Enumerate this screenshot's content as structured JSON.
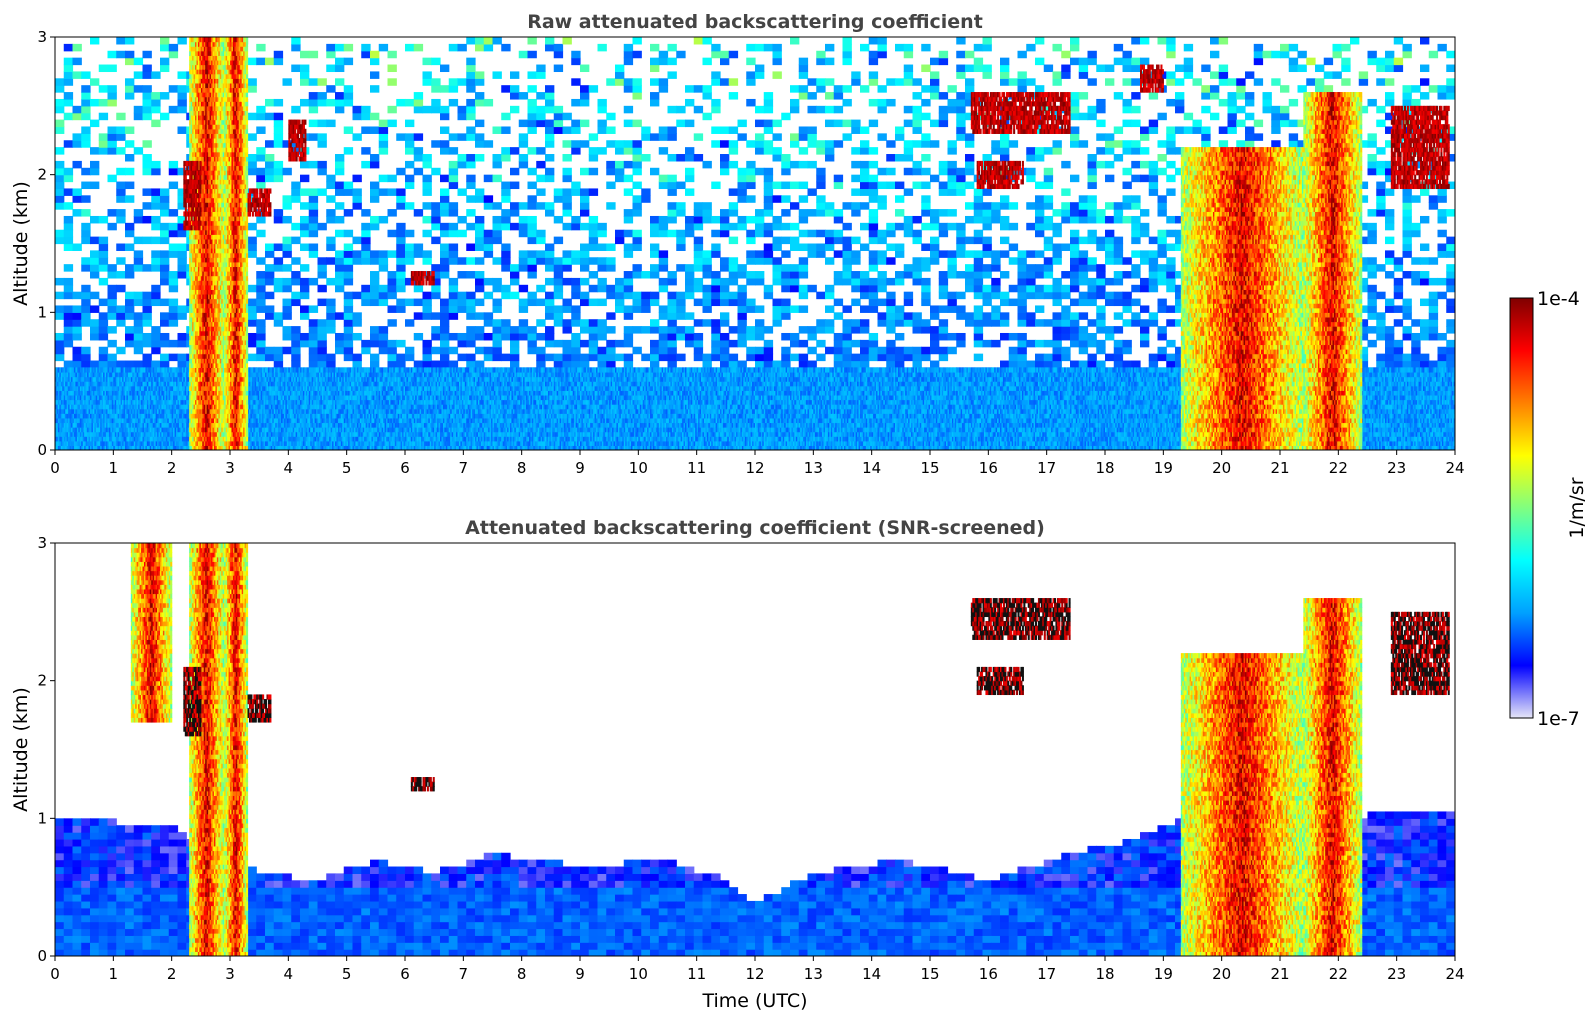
{
  "chart_data": [
    {
      "type": "heatmap",
      "title": "Raw attenuated backscattering coefficient",
      "xlabel": "",
      "ylabel": "Altitude (km)",
      "xlim": [
        0,
        24
      ],
      "ylim": [
        0,
        3
      ],
      "x_ticks": [
        "0",
        "1",
        "2",
        "3",
        "4",
        "5",
        "6",
        "7",
        "8",
        "9",
        "10",
        "11",
        "12",
        "13",
        "14",
        "15",
        "16",
        "17",
        "18",
        "19",
        "20",
        "21",
        "22",
        "23",
        "24"
      ],
      "y_ticks": [
        "0",
        "1",
        "2",
        "3"
      ],
      "screened": false,
      "features": [
        {
          "kind": "boundary_layer",
          "x": [
            0,
            24
          ],
          "y": [
            0,
            0.6
          ]
        },
        {
          "kind": "plume",
          "x": [
            2.3,
            2.9
          ],
          "y": [
            0,
            3.0
          ]
        },
        {
          "kind": "plume",
          "x": [
            2.9,
            3.3
          ],
          "y": [
            0,
            3.0
          ]
        },
        {
          "kind": "cloud",
          "x": [
            2.2,
            2.5
          ],
          "y": [
            1.6,
            2.1
          ]
        },
        {
          "kind": "cloud",
          "x": [
            3.3,
            3.7
          ],
          "y": [
            1.7,
            1.9
          ]
        },
        {
          "kind": "cloud",
          "x": [
            4.0,
            4.3
          ],
          "y": [
            2.1,
            2.4
          ]
        },
        {
          "kind": "cloud",
          "x": [
            6.1,
            6.5
          ],
          "y": [
            1.2,
            1.3
          ]
        },
        {
          "kind": "cloud",
          "x": [
            15.7,
            17.4
          ],
          "y": [
            2.3,
            2.6
          ]
        },
        {
          "kind": "cloud",
          "x": [
            15.8,
            16.6
          ],
          "y": [
            1.9,
            2.1
          ]
        },
        {
          "kind": "cloud",
          "x": [
            18.6,
            19.0
          ],
          "y": [
            2.6,
            2.8
          ]
        },
        {
          "kind": "plume",
          "x": [
            19.3,
            21.4
          ],
          "y": [
            0,
            2.2
          ]
        },
        {
          "kind": "plume",
          "x": [
            21.4,
            22.4
          ],
          "y": [
            0,
            2.6
          ]
        },
        {
          "kind": "cloud",
          "x": [
            22.9,
            23.9
          ],
          "y": [
            1.9,
            2.5
          ]
        }
      ]
    },
    {
      "type": "heatmap",
      "title": "Attenuated backscattering coefficient (SNR-screened)",
      "xlabel": "Time (UTC)",
      "ylabel": "Altitude (km)",
      "xlim": [
        0,
        24
      ],
      "ylim": [
        0,
        3
      ],
      "x_ticks": [
        "0",
        "1",
        "2",
        "3",
        "4",
        "5",
        "6",
        "7",
        "8",
        "9",
        "10",
        "11",
        "12",
        "13",
        "14",
        "15",
        "16",
        "17",
        "18",
        "19",
        "20",
        "21",
        "22",
        "23",
        "24"
      ],
      "y_ticks": [
        "0",
        "1",
        "2",
        "3"
      ],
      "screened": true,
      "boundary_layer_top": [
        [
          0,
          1.0
        ],
        [
          2,
          0.95
        ],
        [
          3.5,
          0.6
        ],
        [
          4.5,
          0.55
        ],
        [
          5.5,
          0.7
        ],
        [
          6.5,
          0.6
        ],
        [
          7.5,
          0.75
        ],
        [
          9,
          0.65
        ],
        [
          10.5,
          0.7
        ],
        [
          11.5,
          0.55
        ],
        [
          12,
          0.4
        ],
        [
          13,
          0.6
        ],
        [
          14.5,
          0.7
        ],
        [
          16,
          0.55
        ],
        [
          17.5,
          0.75
        ],
        [
          18.5,
          0.85
        ],
        [
          19.3,
          1.0
        ],
        [
          21,
          1.0
        ],
        [
          24,
          1.05
        ]
      ],
      "features": [
        {
          "kind": "plume",
          "x": [
            1.3,
            2.0
          ],
          "y": [
            1.7,
            3.0
          ]
        },
        {
          "kind": "plume",
          "x": [
            2.3,
            2.9
          ],
          "y": [
            0,
            3.0
          ]
        },
        {
          "kind": "plume",
          "x": [
            2.9,
            3.3
          ],
          "y": [
            0,
            3.0
          ]
        },
        {
          "kind": "cloud",
          "x": [
            2.2,
            2.5
          ],
          "y": [
            1.6,
            2.1
          ]
        },
        {
          "kind": "cloud",
          "x": [
            3.3,
            3.7
          ],
          "y": [
            1.7,
            1.9
          ]
        },
        {
          "kind": "cloud",
          "x": [
            6.1,
            6.5
          ],
          "y": [
            1.2,
            1.3
          ]
        },
        {
          "kind": "cloud",
          "x": [
            15.7,
            17.4
          ],
          "y": [
            2.3,
            2.6
          ]
        },
        {
          "kind": "cloud",
          "x": [
            15.8,
            16.6
          ],
          "y": [
            1.9,
            2.1
          ]
        },
        {
          "kind": "plume",
          "x": [
            19.3,
            21.4
          ],
          "y": [
            0,
            2.2
          ]
        },
        {
          "kind": "plume",
          "x": [
            21.4,
            22.4
          ],
          "y": [
            0,
            2.6
          ]
        },
        {
          "kind": "cloud",
          "x": [
            22.9,
            23.9
          ],
          "y": [
            1.9,
            2.5
          ]
        }
      ]
    }
  ],
  "colorbar": {
    "label": "1/m/sr",
    "min_label": "1e-7",
    "max_label": "1e-4",
    "colormap": "jet",
    "colors": [
      "#e6e6f7",
      "#0000ff",
      "#00a0ff",
      "#00ffff",
      "#80ff80",
      "#ffff00",
      "#ff8000",
      "#ff0000",
      "#800000"
    ]
  }
}
